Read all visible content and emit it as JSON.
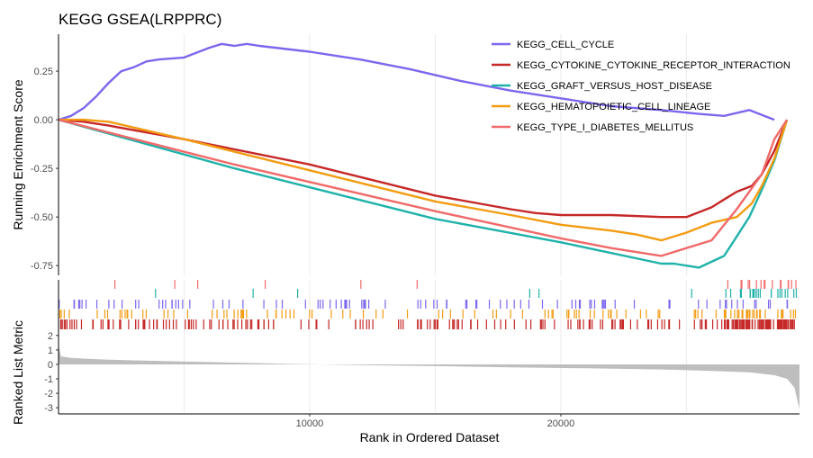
{
  "chart_data": {
    "type": "line",
    "title": "KEGG GSEA(LRPPRC)",
    "xlabel": "Rank in Ordered Dataset",
    "ylabel_top": "Running Enrichment Score",
    "ylabel_bottom": "Ranked List Metric",
    "x_range": [
      0,
      29500
    ],
    "x_ticks": [
      10000,
      20000
    ],
    "x_tick_labels": [
      "10000",
      "20000"
    ],
    "es_range": [
      -0.8,
      0.44
    ],
    "es_ticks": [
      0.25,
      0.0,
      -0.25,
      -0.5,
      -0.75
    ],
    "es_tick_labels": [
      "0.25",
      "0.00",
      "-0.25",
      "-0.50",
      "-0.75"
    ],
    "metric_range": [
      -3.3,
      2.3
    ],
    "metric_ticks": [
      2,
      1,
      0,
      -1,
      -2,
      -3
    ],
    "metric_tick_labels": [
      "2",
      "1",
      "0",
      "-1",
      "-2",
      "-3"
    ],
    "legend_position": "top-right",
    "grid": true,
    "series": [
      {
        "name": "KEGG_CELL_CYCLE",
        "color": "#7B68EE",
        "x": [
          0,
          500,
          1000,
          1500,
          2000,
          2500,
          3000,
          3500,
          4000,
          5000,
          6000,
          6500,
          7000,
          7500,
          8000,
          10000,
          12000,
          14000,
          16000,
          18000,
          20000,
          22000,
          24000,
          25500,
          26500,
          27500,
          28500
        ],
        "y": [
          0.0,
          0.02,
          0.06,
          0.12,
          0.19,
          0.25,
          0.27,
          0.3,
          0.31,
          0.32,
          0.37,
          0.39,
          0.38,
          0.39,
          0.38,
          0.35,
          0.31,
          0.26,
          0.2,
          0.15,
          0.11,
          0.07,
          0.05,
          0.03,
          0.02,
          0.05,
          0.0
        ]
      },
      {
        "name": "KEGG_CYTOKINE_CYTOKINE_RECEPTOR_INTERACTION",
        "color": "#C62828",
        "x": [
          0,
          1000,
          2000,
          5000,
          10000,
          15000,
          18000,
          19000,
          20000,
          22000,
          24000,
          25000,
          26000,
          26500,
          27000,
          27600,
          28000,
          28500,
          29000
        ],
        "y": [
          0.0,
          -0.01,
          -0.03,
          -0.1,
          -0.23,
          -0.39,
          -0.46,
          -0.48,
          -0.49,
          -0.49,
          -0.5,
          -0.5,
          -0.45,
          -0.41,
          -0.37,
          -0.34,
          -0.28,
          -0.16,
          0.0
        ]
      },
      {
        "name": "KEGG_GRAFT_VERSUS_HOST_DISEASE",
        "color": "#20B2AA",
        "x": [
          0,
          7000,
          15000,
          20000,
          24000,
          24500,
          25500,
          26500,
          27000,
          27500,
          28000,
          28500,
          29000
        ],
        "y": [
          0.0,
          -0.25,
          -0.51,
          -0.63,
          -0.74,
          -0.74,
          -0.76,
          -0.7,
          -0.6,
          -0.5,
          -0.36,
          -0.21,
          0.0
        ]
      },
      {
        "name": "KEGG_HEMATOPOIETIC_CELL_LINEAGE",
        "color": "#F39C12",
        "x": [
          0,
          1000,
          2000,
          5000,
          10000,
          15000,
          18000,
          20000,
          22000,
          23000,
          24000,
          25000,
          26000,
          27000,
          27600,
          28000,
          28500,
          29000
        ],
        "y": [
          0.0,
          0.0,
          -0.01,
          -0.1,
          -0.26,
          -0.42,
          -0.49,
          -0.54,
          -0.57,
          -0.59,
          -0.62,
          -0.58,
          -0.53,
          -0.5,
          -0.43,
          -0.34,
          -0.2,
          0.0
        ]
      },
      {
        "name": "KEGG_TYPE_I_DIABETES_MELLITUS",
        "color": "#F06A6A",
        "x": [
          0,
          7000,
          15000,
          20000,
          22000,
          24000,
          25000,
          26000,
          27000,
          28000,
          28500,
          29000
        ],
        "y": [
          0.0,
          -0.23,
          -0.47,
          -0.61,
          -0.66,
          -0.7,
          -0.66,
          -0.62,
          -0.46,
          -0.28,
          -0.1,
          0.0
        ]
      }
    ],
    "metric": {
      "x": [
        0,
        100,
        500,
        1000,
        2000,
        3000,
        5000,
        7000,
        9000,
        12000,
        15000,
        18000,
        21000,
        24000,
        26000,
        27500,
        28500,
        29000,
        29300,
        29500
      ],
      "y": [
        1.3,
        0.55,
        0.45,
        0.4,
        0.33,
        0.28,
        0.2,
        0.12,
        0.05,
        -0.05,
        -0.12,
        -0.2,
        -0.27,
        -0.35,
        -0.45,
        -0.55,
        -0.75,
        -1.0,
        -1.6,
        -3.1
      ]
    }
  }
}
